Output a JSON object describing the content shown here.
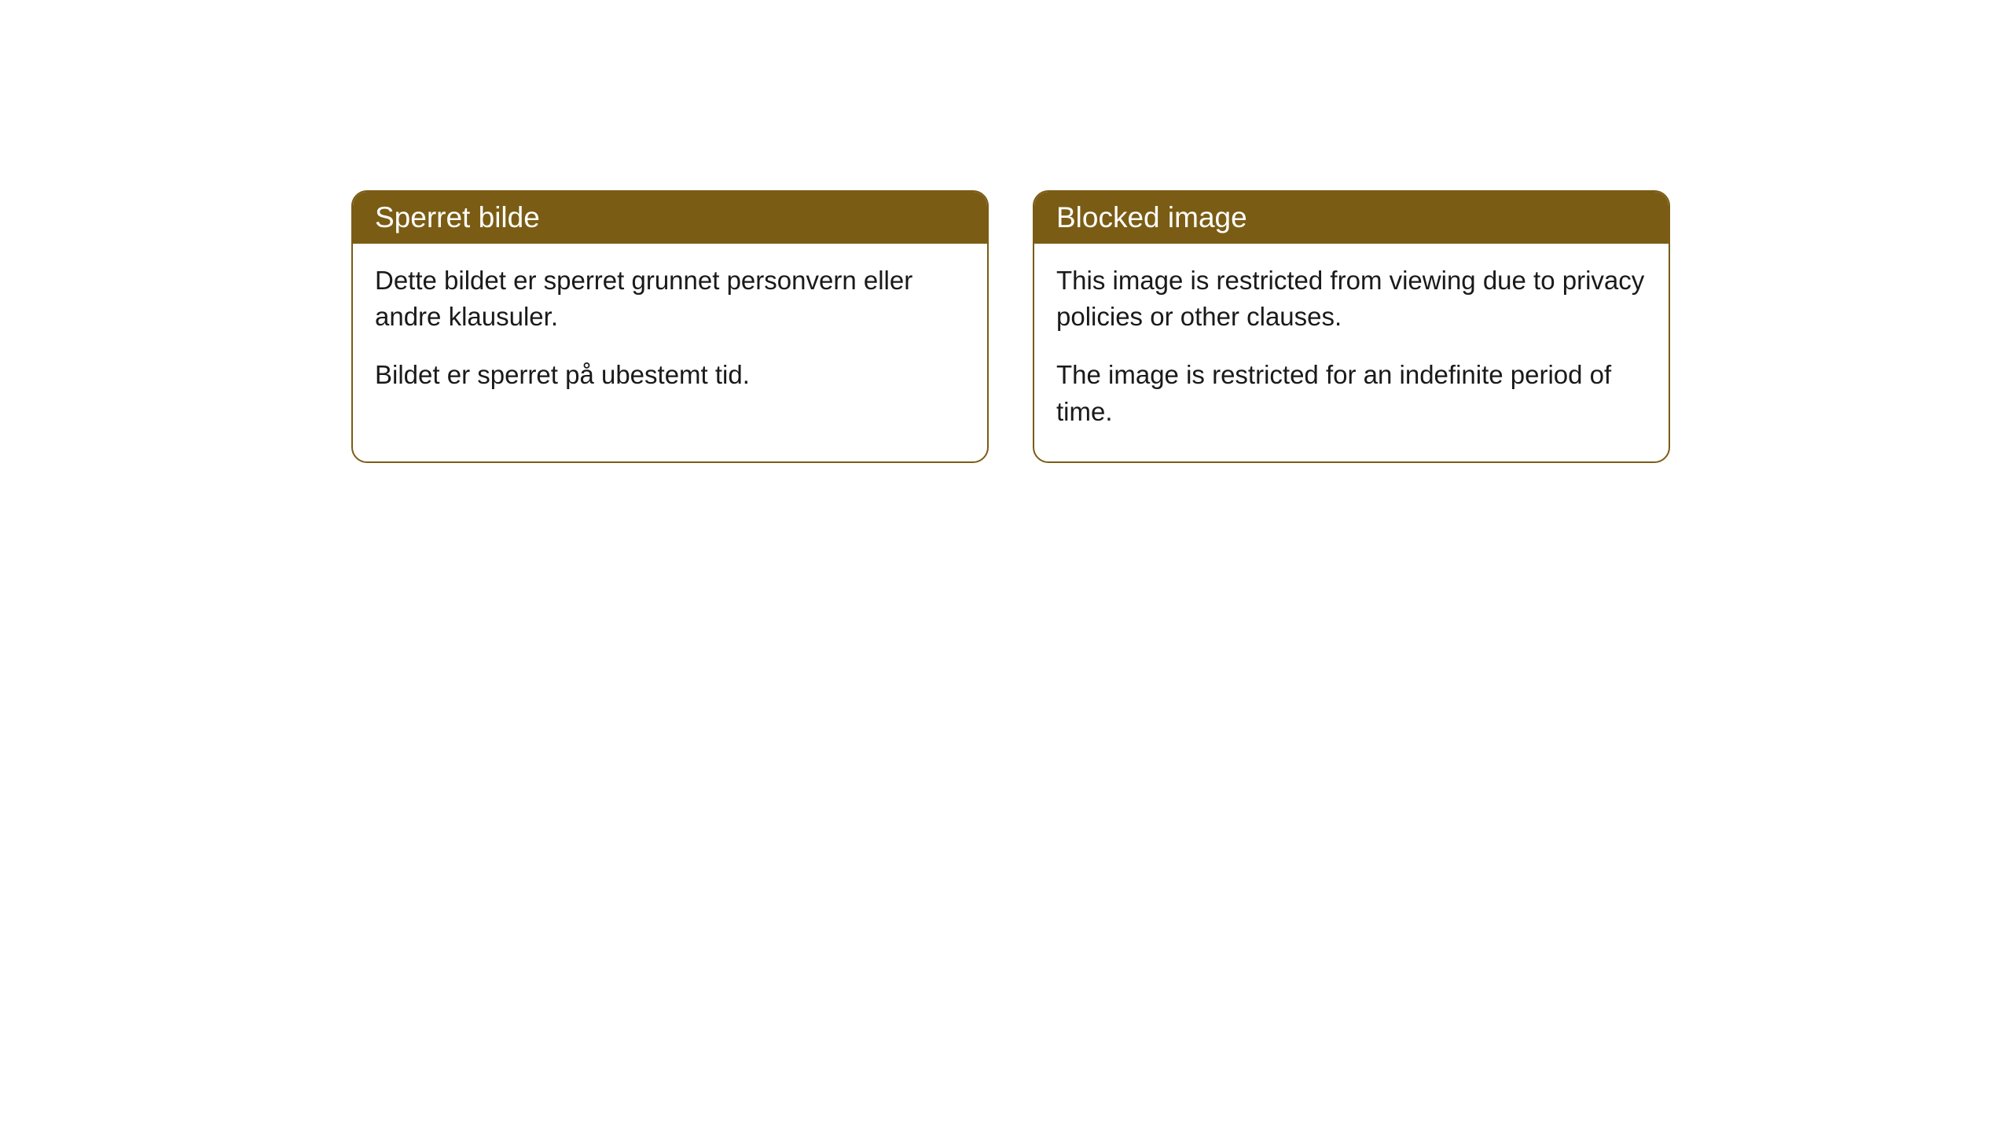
{
  "cards": [
    {
      "title": "Sperret bilde",
      "paragraph1": "Dette bildet er sperret grunnet personvern eller andre klausuler.",
      "paragraph2": "Bildet er sperret på ubestemt tid."
    },
    {
      "title": "Blocked image",
      "paragraph1": "This image is restricted from viewing due to privacy policies or other clauses.",
      "paragraph2": "The image is restricted for an indefinite period of time."
    }
  ],
  "style": {
    "header_background": "#7a5c14",
    "header_text_color": "#ffffff",
    "border_color": "#7a5c14",
    "body_text_color": "#1a1a1a",
    "background_color": "#ffffff",
    "border_radius": "20px",
    "title_fontsize": 37,
    "body_fontsize": 33
  }
}
